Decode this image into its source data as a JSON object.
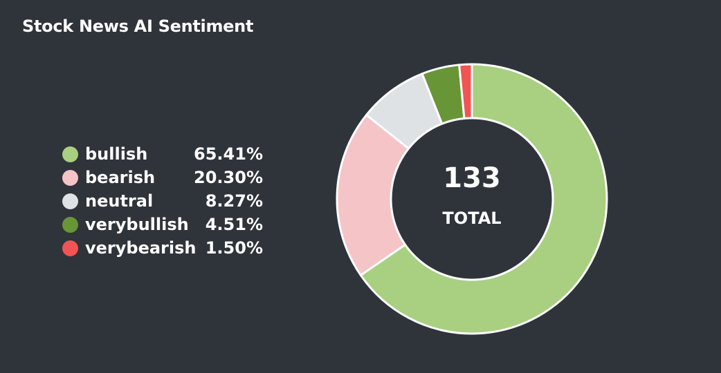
{
  "title": "Stock News AI Sentiment",
  "chart_data": {
    "type": "pie",
    "title": "Stock News AI Sentiment",
    "total": {
      "value": "133",
      "label": "TOTAL"
    },
    "slices": [
      {
        "name": "bullish",
        "value": 65.41,
        "percent_label": "65.41%",
        "color": "#a8d080"
      },
      {
        "name": "bearish",
        "value": 20.3,
        "percent_label": "20.30%",
        "color": "#f5c4c7"
      },
      {
        "name": "neutral",
        "value": 8.27,
        "percent_label": "8.27%",
        "color": "#dfe2e5"
      },
      {
        "name": "verybullish",
        "value": 4.51,
        "percent_label": "4.51%",
        "color": "#689637"
      },
      {
        "name": "verybearish",
        "value": 1.5,
        "percent_label": "1.50%",
        "color": "#f05454"
      }
    ],
    "legend_placement": "left",
    "donut": true,
    "start_angle_deg": 0
  }
}
